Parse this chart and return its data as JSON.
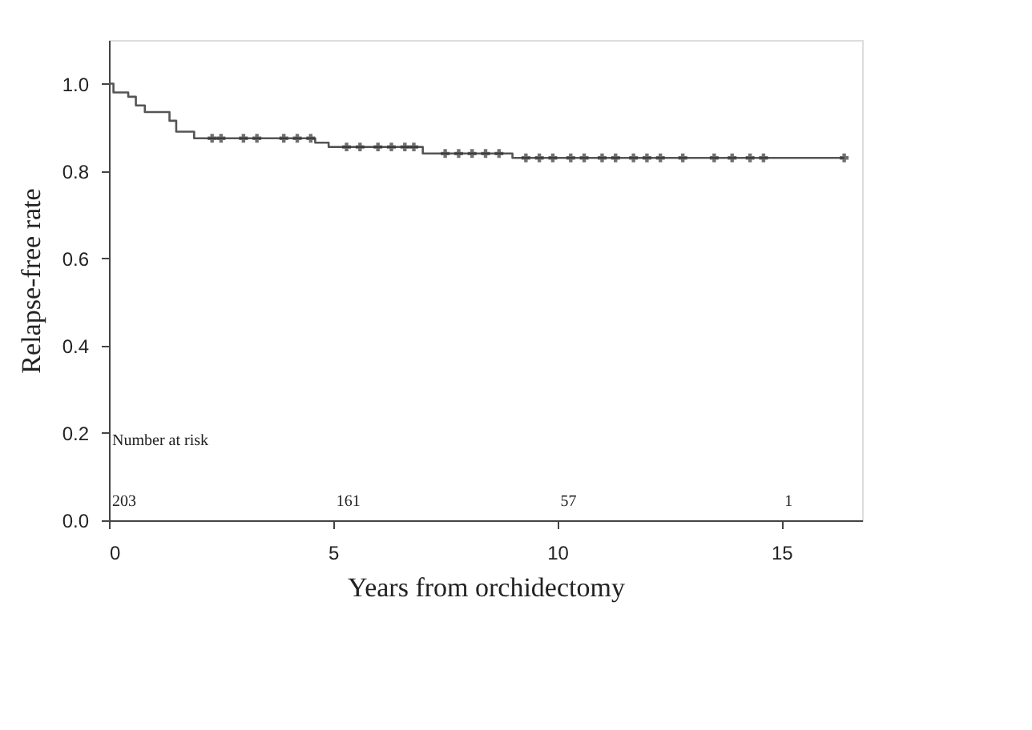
{
  "chart_data": {
    "type": "step",
    "xlabel": "Years from orchidectomy",
    "ylabel": "Relapse-free rate",
    "xlim": [
      0,
      16.8
    ],
    "ylim": [
      0,
      1.1
    ],
    "xticks": [
      0,
      5,
      10,
      15
    ],
    "yticks": [
      {
        "value": 0,
        "label": "0.0"
      },
      0.2,
      0.4,
      0.6,
      0.8,
      {
        "value": 1,
        "label": "1.0"
      }
    ],
    "grid": false,
    "series": [
      {
        "color": "#555555",
        "marker": "none",
        "x": [
          0,
          0.1,
          0.43,
          0.6,
          0.8,
          1.35,
          1.5,
          1.9,
          4.6,
          4.9,
          7.0,
          9.0,
          16.4
        ],
        "values": [
          1.0,
          0.98,
          0.97,
          0.95,
          0.935,
          0.915,
          0.89,
          0.875,
          0.865,
          0.855,
          0.84,
          0.83,
          0.83
        ]
      },
      {
        "type": "scatter",
        "color": "#333333",
        "marker": "cross",
        "x": [
          2.3,
          2.5,
          3.0,
          3.3,
          3.9,
          4.2,
          4.5,
          5.3,
          5.6,
          6.0,
          6.3,
          6.6,
          6.8,
          7.5,
          7.8,
          8.1,
          8.4,
          8.7,
          9.3,
          9.6,
          9.9,
          10.3,
          10.6,
          11.0,
          11.3,
          11.7,
          12.0,
          12.3,
          12.8,
          13.5,
          13.9,
          14.3,
          14.6,
          16.4
        ],
        "values": [
          0.875,
          0.875,
          0.875,
          0.875,
          0.875,
          0.875,
          0.875,
          0.855,
          0.855,
          0.855,
          0.855,
          0.855,
          0.855,
          0.84,
          0.84,
          0.84,
          0.84,
          0.84,
          0.83,
          0.83,
          0.83,
          0.83,
          0.83,
          0.83,
          0.83,
          0.83,
          0.83,
          0.83,
          0.83,
          0.83,
          0.83,
          0.83,
          0.83,
          0.83
        ]
      }
    ],
    "annotations": [
      "Number at risk",
      "203",
      "161",
      "57",
      "1"
    ]
  }
}
